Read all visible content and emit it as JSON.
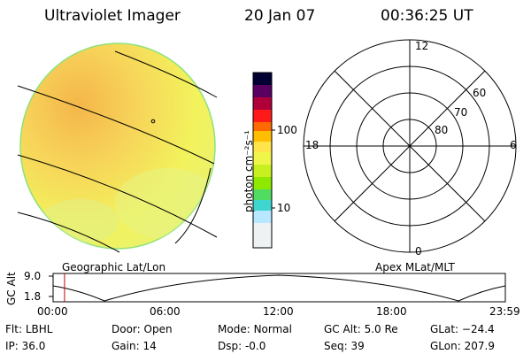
{
  "header": {
    "title": "Ultraviolet Imager",
    "date": "20 Jan 07",
    "time": "00:36:25 UT"
  },
  "colorbar": {
    "label": "photon cm⁻²s⁻¹",
    "ticks": [
      "100",
      "10"
    ],
    "colors": [
      "#f2f2f2",
      "#b8e8ff",
      "#3fd6d0",
      "#8ee800",
      "#d6f000",
      "#ffff40",
      "#ffbf00",
      "#ff6a00",
      "#ff1a1a",
      "#b0003a",
      "#5a0060",
      "#000033"
    ]
  },
  "polar_plot": {
    "labels": {
      "top": "12",
      "right": "6",
      "left": "18",
      "bottom": "0"
    },
    "ring_labels": [
      "60",
      "70",
      "80"
    ]
  },
  "strip": {
    "ylabel": "GC Alt",
    "yticks": [
      "9.0",
      "1.8"
    ],
    "left_caption": "Geographic Lat/Lon",
    "right_caption": "Apex MLat/MLT",
    "time_ticks": [
      "00:00",
      "06:00",
      "12:00",
      "18:00",
      "23:59"
    ],
    "current_time_fraction": 0.0253
  },
  "status": [
    {
      "key": "Flt",
      "value": "LBHL"
    },
    {
      "key": "IP",
      "value": "36.0"
    },
    {
      "key": "Door",
      "value": "Open"
    },
    {
      "key": "Gain",
      "value": "14"
    },
    {
      "key": "Mode",
      "value": "Normal"
    },
    {
      "key": "Dsp",
      "value": "-0.0"
    },
    {
      "key": "GC Alt",
      "value": "5.0 Re"
    },
    {
      "key": "Seq",
      "value": "39"
    },
    {
      "key": "GLat",
      "value": "−24.4"
    },
    {
      "key": "GLon",
      "value": "207.9"
    }
  ]
}
